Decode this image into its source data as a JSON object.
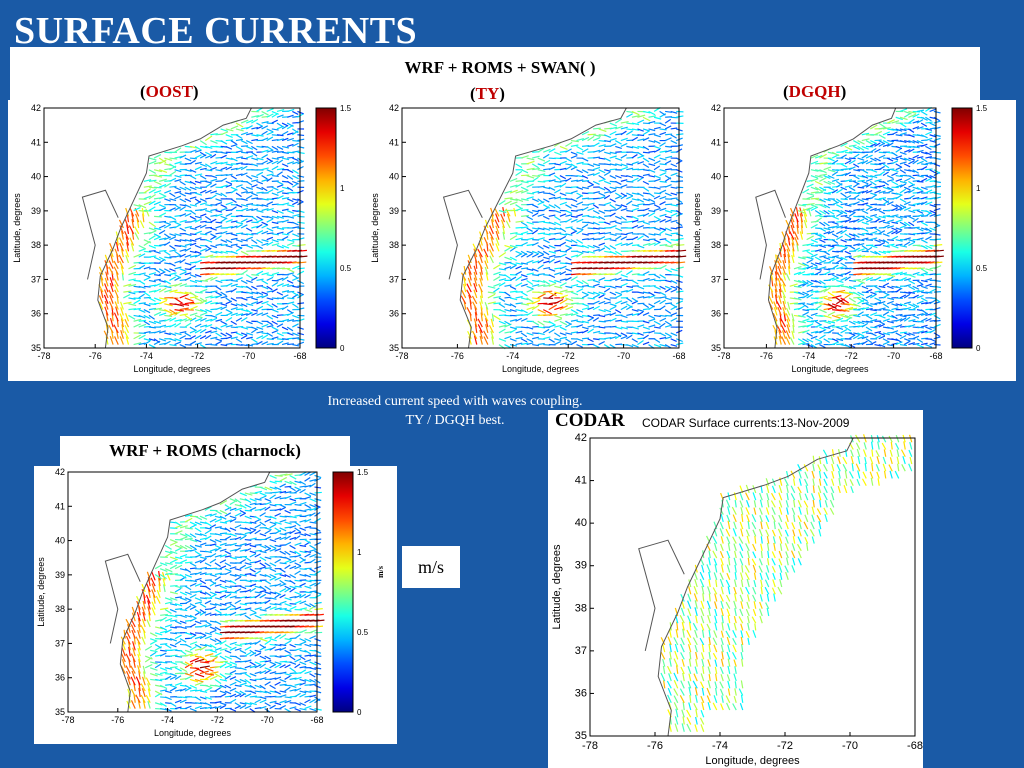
{
  "slide": {
    "title": "SURFACE CURRENTS",
    "coupled_header": "WRF + ROMS + SWAN( )",
    "panels": [
      {
        "open": "(",
        "name": "OOST",
        "close": ")"
      },
      {
        "open": "(",
        "name": "TY",
        "close": ")"
      },
      {
        "open": "(",
        "name": "DGQH",
        "close": ")"
      }
    ],
    "caption_line1": "Increased current speed with waves coupling.",
    "caption_line2": "TY / DGQH best.",
    "charnock_label": "WRF + ROMS (charnock)",
    "units_box": "m/s",
    "codar_label": "CODAR"
  },
  "map_axes": {
    "xlabel": "Longitude, degrees",
    "ylabel": "Latitude, degrees",
    "xticks": [
      "-78",
      "-76",
      "-74",
      "-72",
      "-70",
      "-68"
    ],
    "yticks": [
      "42",
      "41",
      "40",
      "39",
      "38",
      "37",
      "36",
      "35"
    ],
    "colorbar_ticks": [
      "1.5",
      "1",
      "0.5",
      "0"
    ],
    "colorbar_units": "m/s",
    "codar_title": "CODAR Surface currents:13-Nov-2009"
  },
  "colors": {
    "background": "#1a5aa6",
    "accent_red": "#c00000"
  }
}
